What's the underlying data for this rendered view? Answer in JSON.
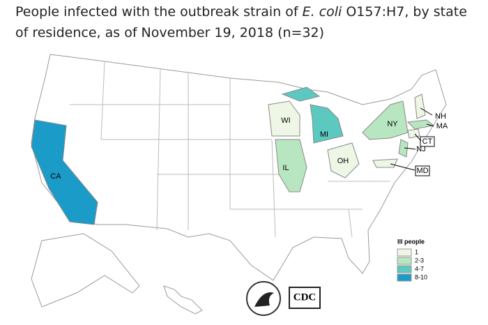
{
  "title": {
    "before": "People infected with the outbreak strain of ",
    "italic": "E. coli",
    "after": " O157:H7, by state of residence, as of November 19, 2018 (n=32)"
  },
  "states": [
    {
      "label": "CA",
      "color": "#1a9bc8"
    },
    {
      "label": "WI",
      "color": "#eef7e6"
    },
    {
      "label": "MI",
      "color": "#5cc9c0"
    },
    {
      "label": "IL",
      "color": "#b8e6c0"
    },
    {
      "label": "OH",
      "color": "#eef7e6"
    },
    {
      "label": "NY",
      "color": "#b8e6c0"
    },
    {
      "label": "NH",
      "color": "#eef7e6"
    },
    {
      "label": "MA",
      "color": "#b8e6c0"
    },
    {
      "label": "CT",
      "color": "#eef7e6"
    },
    {
      "label": "NJ",
      "color": "#b8e6c0"
    },
    {
      "label": "MD",
      "color": "#eef7e6"
    }
  ],
  "legend": {
    "title": "Ill people",
    "items": [
      {
        "label": "1",
        "color": "#eef7e6"
      },
      {
        "label": "2-3",
        "color": "#b8e6c0"
      },
      {
        "label": "4-7",
        "color": "#5cc9c0"
      },
      {
        "label": "8-10",
        "color": "#1a9bc8"
      }
    ]
  },
  "logo": "CDC"
}
